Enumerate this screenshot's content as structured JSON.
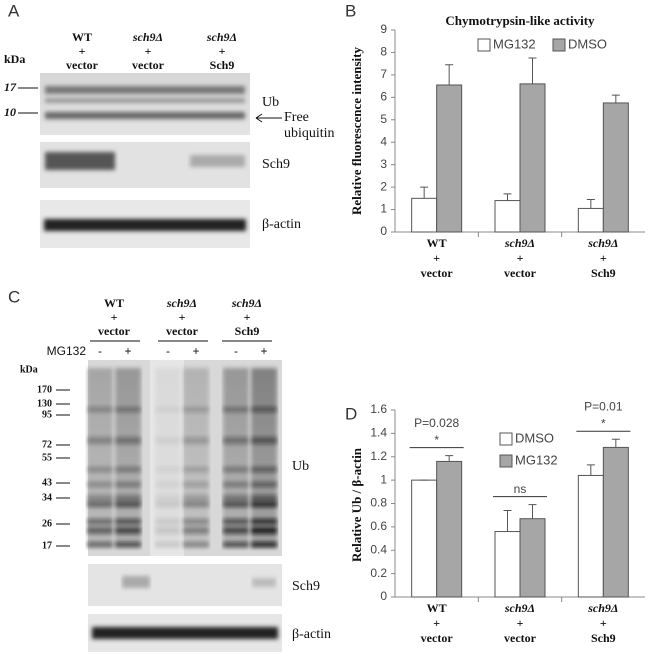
{
  "panel_labels": [
    "A",
    "B",
    "C",
    "D"
  ],
  "blot_a": {
    "kda": "kDa",
    "markers": [
      17,
      10
    ],
    "lanes": [
      [
        "WT",
        "+",
        "vector"
      ],
      [
        "sch9Δ",
        "+",
        "vector"
      ],
      [
        "sch9Δ",
        "+",
        "Sch9"
      ]
    ],
    "ub": "Ub",
    "free": [
      "Free",
      "ubiquitin"
    ],
    "sch9": "Sch9",
    "actin": "β-actin"
  },
  "blot_c": {
    "kda": "kDa",
    "markers": [
      170,
      130,
      95,
      72,
      55,
      43,
      34,
      26,
      17
    ],
    "lanes": [
      [
        "WT",
        "+",
        "vector"
      ],
      [
        "sch9Δ",
        "+",
        "vector"
      ],
      [
        "sch9Δ",
        "+",
        "Sch9"
      ]
    ],
    "treatment": "MG132",
    "treatment_lanes": [
      "-",
      "+",
      "-",
      "+",
      "-",
      "+"
    ],
    "ub": "Ub",
    "sch9": "Sch9",
    "actin": "β-actin"
  },
  "chart_data": [
    {
      "type": "bar",
      "title": "Chymotrypsin-like activity",
      "y_label": "Relative fluorescence intensity",
      "categories": [
        [
          "WT",
          "+",
          "vector"
        ],
        [
          "sch9Δ",
          "+",
          "vector"
        ],
        [
          "sch9Δ",
          "+",
          "Sch9"
        ]
      ],
      "series": [
        {
          "name": "MG132",
          "color": "#ffffff",
          "values": [
            1.5,
            1.4,
            1.05
          ],
          "errors": [
            0.5,
            0.3,
            0.4
          ]
        },
        {
          "name": "DMSO",
          "color": "#a6a6a6",
          "values": [
            6.55,
            6.6,
            5.75
          ],
          "errors": [
            0.9,
            1.15,
            0.35
          ]
        }
      ],
      "ylim": [
        0,
        9
      ],
      "yticks": [
        0,
        1,
        2,
        3,
        4,
        5,
        6,
        7,
        8,
        9
      ],
      "legend": "top"
    },
    {
      "type": "bar",
      "y_label": "Relative Ub / β-actin",
      "categories": [
        [
          "WT",
          "+",
          "vector"
        ],
        [
          "sch9Δ",
          "+",
          "vector"
        ],
        [
          "sch9Δ",
          "+",
          "Sch9"
        ]
      ],
      "series": [
        {
          "name": "DMSO",
          "color": "#ffffff",
          "values": [
            1.0,
            0.56,
            1.04
          ],
          "errors": [
            0,
            0.18,
            0.09
          ]
        },
        {
          "name": "MG132",
          "color": "#a6a6a6",
          "values": [
            1.16,
            0.67,
            1.28
          ],
          "errors": [
            0.05,
            0.12,
            0.07
          ]
        }
      ],
      "p_values": [
        "P=0.028",
        null,
        "P=0.01"
      ],
      "significance": [
        "*",
        "ns",
        "*"
      ],
      "ylim": [
        0,
        1.6
      ],
      "yticks": [
        0,
        0.2,
        0.4,
        0.6,
        0.8,
        1,
        1.2,
        1.4,
        1.6
      ],
      "legend": "top-right"
    }
  ]
}
